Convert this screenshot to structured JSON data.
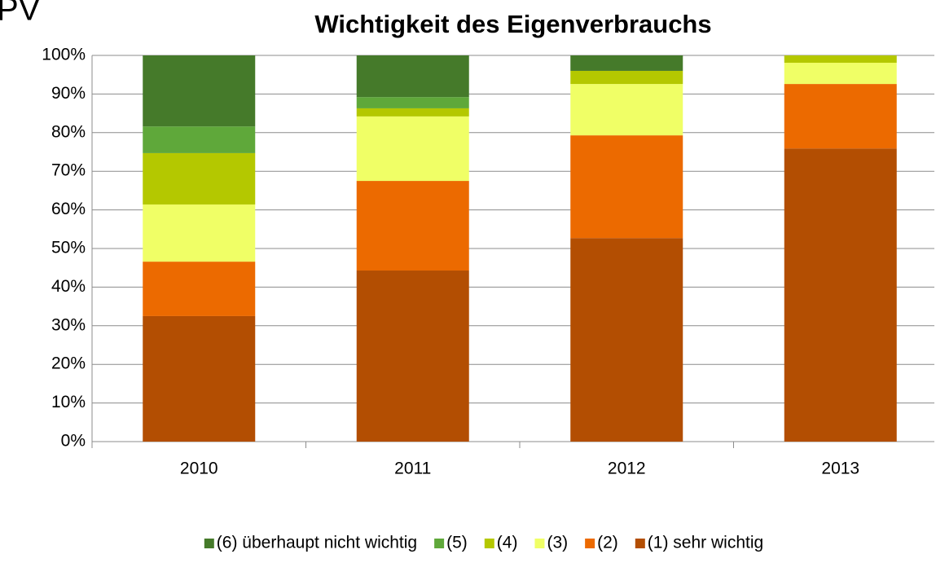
{
  "chart_data": {
    "type": "stacked_bar",
    "annotation": "PV",
    "title": "Wichtigkeit des Eigenverbrauchs",
    "categories": [
      "2010",
      "2011",
      "2012",
      "2013"
    ],
    "series": [
      {
        "name": "(6) überhaupt nicht wichtig",
        "color": "#457a2a",
        "values": [
          18.4,
          10.8,
          4.0,
          0
        ]
      },
      {
        "name": "(5)",
        "color": "#5fa83a",
        "values": [
          6.9,
          2.9,
          0,
          0
        ]
      },
      {
        "name": "(4)",
        "color": "#b4c800",
        "values": [
          13.3,
          2.1,
          3.4,
          1.9
        ]
      },
      {
        "name": "(3)",
        "color": "#f0ff66",
        "values": [
          14.8,
          16.7,
          13.3,
          5.5
        ]
      },
      {
        "name": "(2)",
        "color": "#ec6a00",
        "values": [
          14.1,
          23.2,
          26.6,
          16.7
        ]
      },
      {
        "name": "(1) sehr wichtig",
        "color": "#b34e02",
        "values": [
          32.5,
          44.3,
          52.7,
          75.9
        ]
      }
    ],
    "ylim": [
      0,
      100
    ],
    "yticks": [
      {
        "value": 0,
        "label": "0%"
      },
      {
        "value": 10,
        "label": "10%"
      },
      {
        "value": 20,
        "label": "20%"
      },
      {
        "value": 30,
        "label": "30%"
      },
      {
        "value": 40,
        "label": "40%"
      },
      {
        "value": 50,
        "label": "50%"
      },
      {
        "value": 60,
        "label": "60%"
      },
      {
        "value": 70,
        "label": "70%"
      },
      {
        "value": 80,
        "label": "80%"
      },
      {
        "value": 90,
        "label": "90%"
      },
      {
        "value": 100,
        "label": "100%"
      }
    ],
    "grid": true,
    "legend": "bottom"
  }
}
